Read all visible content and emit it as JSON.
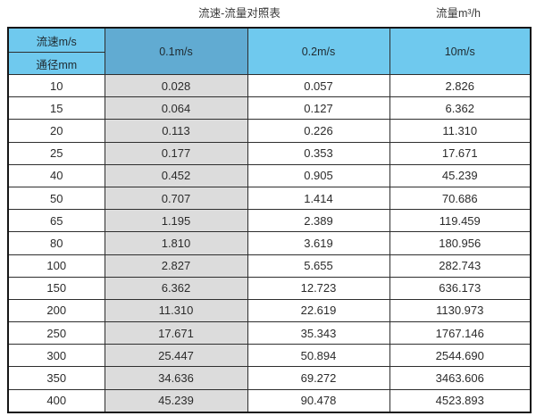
{
  "captions": {
    "title": "流速-流量对照表",
    "unit": "流量m³/h"
  },
  "table": {
    "velocity_label": "流速m/s",
    "diameter_label": "通径mm",
    "columns": [
      "0.1m/s",
      "0.2m/s",
      "10m/s"
    ],
    "rows": [
      [
        "10",
        "0.028",
        "0.057",
        "2.826"
      ],
      [
        "15",
        "0.064",
        "0.127",
        "6.362"
      ],
      [
        "20",
        "0.113",
        "0.226",
        "11.310"
      ],
      [
        "25",
        "0.177",
        "0.353",
        "17.671"
      ],
      [
        "40",
        "0.452",
        "0.905",
        "45.239"
      ],
      [
        "50",
        "0.707",
        "1.414",
        "70.686"
      ],
      [
        "65",
        "1.195",
        "2.389",
        "119.459"
      ],
      [
        "80",
        "1.810",
        "3.619",
        "180.956"
      ],
      [
        "100",
        "2.827",
        "5.655",
        "282.743"
      ],
      [
        "150",
        "6.362",
        "12.723",
        "636.173"
      ],
      [
        "200",
        "11.310",
        "22.619",
        "1130.973"
      ],
      [
        "250",
        "17.671",
        "35.343",
        "1767.146"
      ],
      [
        "300",
        "25.447",
        "50.894",
        "2544.690"
      ],
      [
        "350",
        "34.636",
        "69.272",
        "3463.606"
      ],
      [
        "400",
        "45.239",
        "90.478",
        "4523.893"
      ]
    ]
  },
  "colors": {
    "header_light_blue": "#6fc9ee",
    "header_dark_blue": "#61abd2",
    "highlight_column_gray": "#dcdcdc",
    "border": "#2e2e2e",
    "text": "#2b2b2b"
  }
}
